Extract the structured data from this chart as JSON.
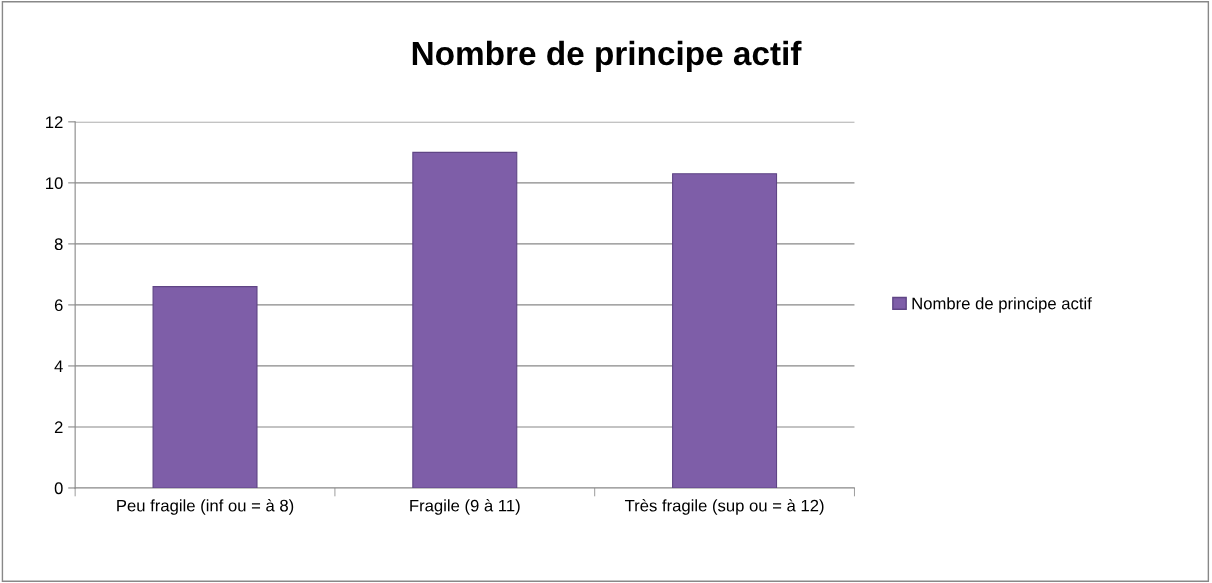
{
  "chart_data": {
    "type": "bar",
    "title": "Nombre de principe actif",
    "categories": [
      "Peu fragile (inf ou = à 8)",
      "Fragile (9 à 11)",
      "Très fragile (sup ou = à 12)"
    ],
    "series": [
      {
        "name": "Nombre de principe actif",
        "color": "#7e5ea8",
        "values": [
          6.6,
          11,
          10.3
        ]
      }
    ],
    "ylim": [
      0,
      12
    ],
    "yticks": [
      0,
      2,
      4,
      6,
      8,
      10,
      12
    ],
    "grid": "y",
    "legend": "right"
  }
}
